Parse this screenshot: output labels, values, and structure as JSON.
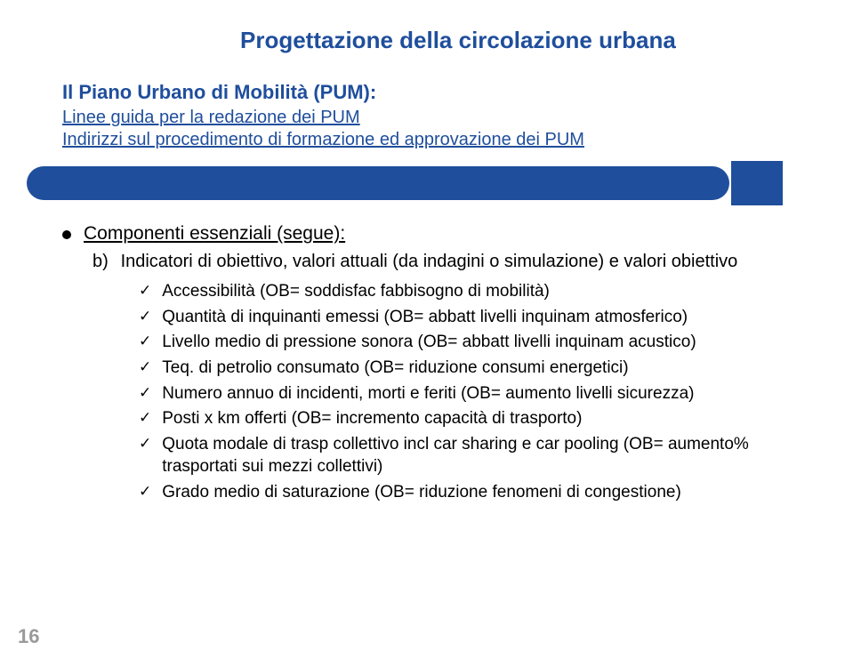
{
  "title": "Progettazione della circolazione urbana",
  "subtitle": "Il Piano Urbano di Mobilità (PUM):",
  "link1": "Linee guida per la redazione dei PUM",
  "link2": "Indirizzi sul procedimento di formazione ed approvazione dei PUM",
  "main_bullet": "Componenti essenziali (segue):",
  "sub_label": "b)",
  "sub_text": "Indicatori di obiettivo, valori attuali (da indagini o simulazione) e valori obiettivo",
  "checks": [
    "Accessibilità (OB= soddisfac fabbisogno di mobilità)",
    "Quantità di inquinanti emessi (OB= abbatt livelli inquinam atmosferico)",
    "Livello medio di pressione sonora (OB= abbatt livelli inquinam acustico)",
    "Teq. di petrolio consumato (OB= riduzione consumi energetici)",
    "Numero annuo di incidenti, morti e feriti (OB= aumento livelli sicurezza)",
    "Posti x km offerti (OB= incremento capacità di trasporto)",
    "Quota modale di trasp collettivo incl car sharing e car pooling (OB= aumento% trasportati sui mezzi collettivi)",
    "Grado medio di saturazione (OB= riduzione fenomeni di congestione)"
  ],
  "page_number": "16",
  "colors": {
    "primary_blue": "#1f4e9c",
    "text_black": "#000000",
    "page_num_gray": "#9a9a9a",
    "background": "#ffffff"
  },
  "fonts": {
    "family": "Arial",
    "title_size": 26,
    "subtitle_size": 22,
    "link_size": 20,
    "bullet_size": 21,
    "sub_size": 20,
    "check_size": 19,
    "pagenum_size": 22
  }
}
